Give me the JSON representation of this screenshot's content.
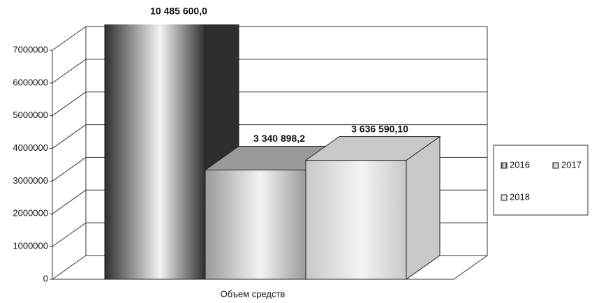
{
  "chart_data": {
    "type": "bar3d",
    "categories": [
      "Объем средств"
    ],
    "series": [
      {
        "name": "2016",
        "color": "#2e2e2e",
        "values": [
          10485600.0
        ],
        "value_labels": [
          "10 485 600,0"
        ]
      },
      {
        "name": "2017",
        "color": "#9a9a9a",
        "values": [
          3340898.2
        ],
        "value_labels": [
          "3 340 898,2"
        ]
      },
      {
        "name": "2018",
        "color": "#c8c8c8",
        "values": [
          3636590.1
        ],
        "value_labels": [
          "3 636 590,10"
        ]
      }
    ],
    "ylim": [
      0,
      7000000
    ],
    "yticks": [
      0,
      1000000,
      2000000,
      3000000,
      4000000,
      5000000,
      6000000,
      7000000
    ],
    "grid": true,
    "legend": "right"
  }
}
